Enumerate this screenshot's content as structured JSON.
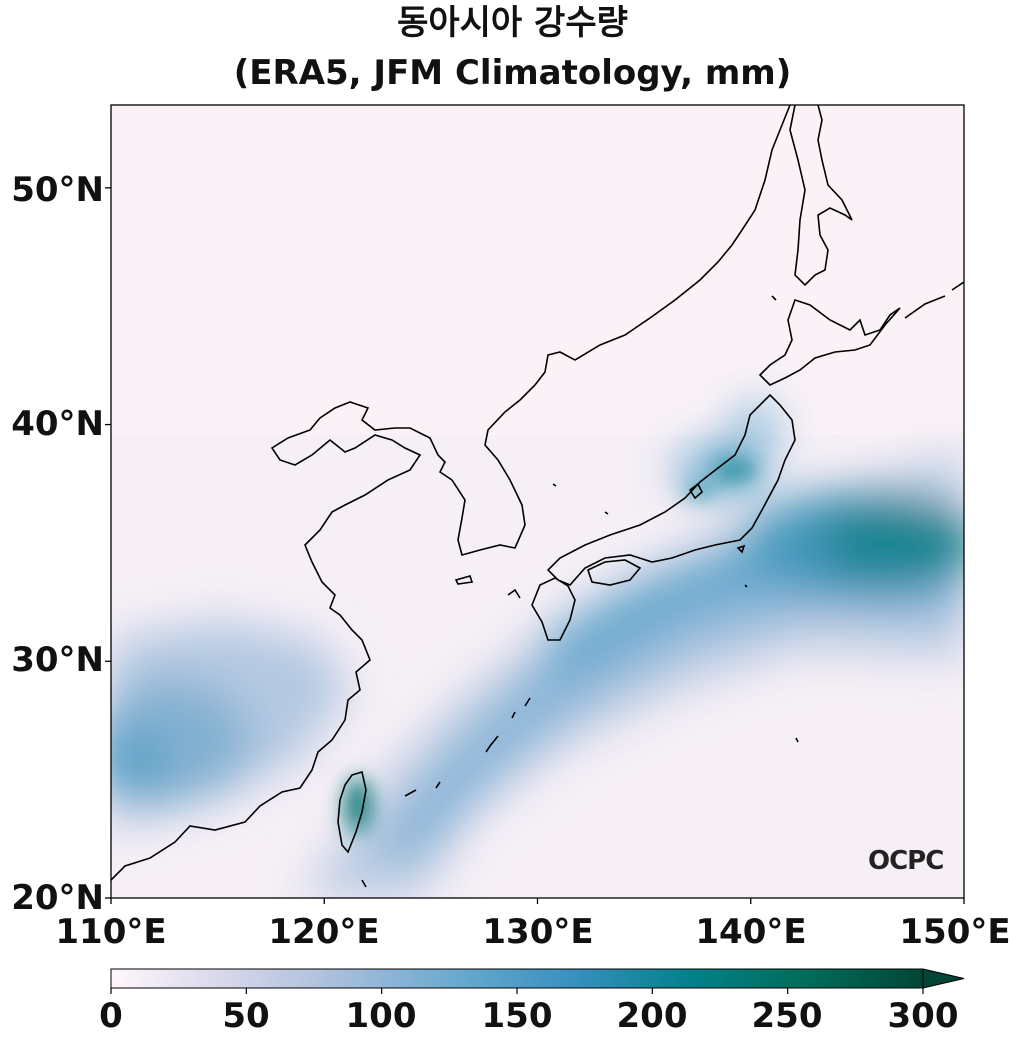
{
  "title": {
    "line1": "동아시아 강수량",
    "line2": "(ERA5, JFM Climatology, mm)"
  },
  "map": {
    "extent": {
      "lon": [
        110,
        150
      ],
      "lat": [
        20,
        53.5
      ]
    },
    "lat_ticks": [
      {
        "value": 20,
        "label": "20°N"
      },
      {
        "value": 30,
        "label": "30°N"
      },
      {
        "value": 40,
        "label": "40°N"
      },
      {
        "value": 50,
        "label": "50°N"
      }
    ],
    "lon_ticks": [
      {
        "value": 110,
        "label": "110°E"
      },
      {
        "value": 120,
        "label": "120°E"
      },
      {
        "value": 130,
        "label": "130°E"
      },
      {
        "value": 140,
        "label": "140°E"
      },
      {
        "value": 150,
        "label": "150°E"
      }
    ],
    "coastline_color": "#000000"
  },
  "colorbar": {
    "range": [
      0,
      300
    ],
    "extend": "max",
    "ticks": [
      {
        "value": 0,
        "label": "0"
      },
      {
        "value": 50,
        "label": "50"
      },
      {
        "value": 100,
        "label": "100"
      },
      {
        "value": 150,
        "label": "150"
      },
      {
        "value": 200,
        "label": "200"
      },
      {
        "value": 250,
        "label": "250"
      },
      {
        "value": 300,
        "label": "300"
      }
    ],
    "colors": [
      "#fff7fb",
      "#d6d6ea",
      "#a6bddb",
      "#67a9cf",
      "#3690c0",
      "#02818a",
      "#016c59",
      "#014636"
    ]
  },
  "logo": {
    "text": "OCPC"
  }
}
